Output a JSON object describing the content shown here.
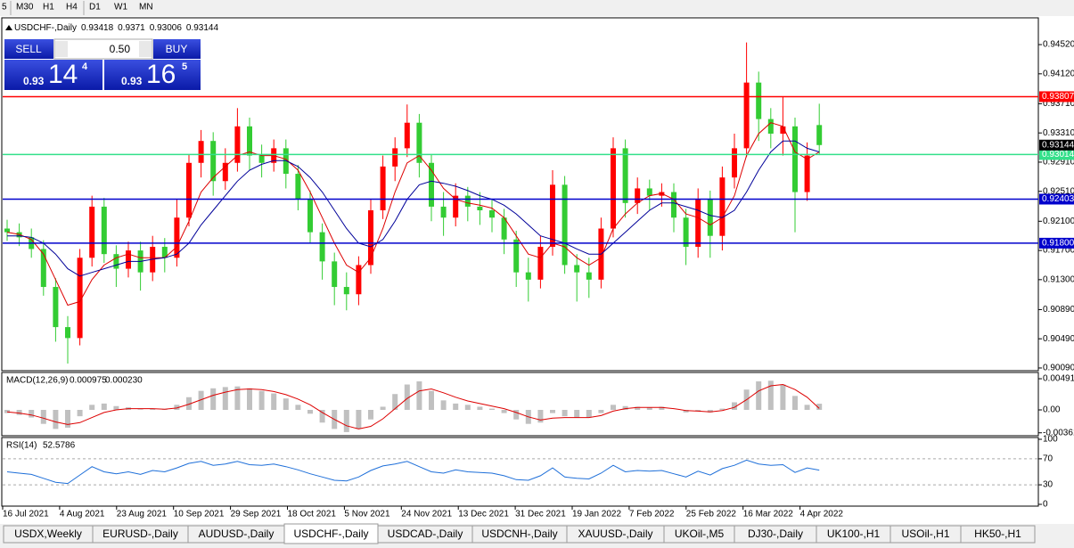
{
  "toolbar": [
    "5",
    "M30",
    "H1",
    "H4",
    "D1",
    "W1",
    "MN"
  ],
  "trade_panel": {
    "sell": "SELL",
    "buy": "BUY",
    "lot": "0.50",
    "sell_price": [
      "0.93",
      "14",
      "4"
    ],
    "buy_price": [
      "0.93",
      "16",
      "5"
    ]
  },
  "chart": {
    "symbol": "USDCHF-,Daily",
    "up_color": "#ff0000",
    "down_color": "#33cc33",
    "ylim": [
      0.90053,
      0.94887
    ],
    "yticks": [
      {
        "value": 0.9452,
        "label": "0.94520"
      },
      {
        "value": 0.9412,
        "label": "0.94120"
      },
      {
        "value": 0.9371,
        "label": "0.93710"
      },
      {
        "value": 0.9331,
        "label": "0.93310"
      },
      {
        "value": 0.9291,
        "label": "0.92910"
      },
      {
        "value": 0.9251,
        "label": "0.92510"
      },
      {
        "value": 0.921,
        "label": "0.92100"
      },
      {
        "value": 0.917,
        "label": "0.91700"
      },
      {
        "value": 0.913,
        "label": "0.91300"
      },
      {
        "value": 0.9089,
        "label": "0.90890"
      },
      {
        "value": 0.9049,
        "label": "0.90490"
      },
      {
        "value": 0.9009,
        "label": "0.90090"
      }
    ],
    "levels": [
      {
        "value": 0.93807,
        "label": "0.93807",
        "color": "#ff0000"
      },
      {
        "value": 0.93014,
        "label": "0.93014",
        "color": "#33e08a"
      },
      {
        "value": 0.92403,
        "label": "0.92403",
        "color": "#0000cc"
      },
      {
        "value": 0.918,
        "label": "0.91800",
        "color": "#0000cc"
      }
    ],
    "dates": [
      "16 Jul 2021",
      "4 Aug 2021",
      "23 Aug 2021",
      "10 Sep 2021",
      "29 Sep 2021",
      "18 Oct 2021",
      "5 Nov 2021",
      "24 Nov 2021",
      "13 Dec 2021",
      "31 Dec 2021",
      "19 Jan 2022",
      "7 Feb 2022",
      "25 Feb 2022",
      "16 Mar 2022",
      "4 Apr 2022"
    ],
    "candles": [
      [
        0.92,
        0.9212,
        0.9183,
        0.9195
      ],
      [
        0.9195,
        0.9207,
        0.9176,
        0.9188
      ],
      [
        0.9188,
        0.92,
        0.916,
        0.9172
      ],
      [
        0.9172,
        0.9184,
        0.9108,
        0.912
      ],
      [
        0.912,
        0.9132,
        0.9045,
        0.9065
      ],
      [
        0.9065,
        0.908,
        0.9015,
        0.905
      ],
      [
        0.905,
        0.9172,
        0.904,
        0.916
      ],
      [
        0.916,
        0.9245,
        0.9148,
        0.923
      ],
      [
        0.923,
        0.9242,
        0.9153,
        0.9165
      ],
      [
        0.9165,
        0.9177,
        0.912,
        0.9145
      ],
      [
        0.9145,
        0.9182,
        0.9133,
        0.917
      ],
      [
        0.917,
        0.9182,
        0.9115,
        0.914
      ],
      [
        0.914,
        0.919,
        0.9128,
        0.9175
      ],
      [
        0.9175,
        0.9187,
        0.914,
        0.916
      ],
      [
        0.916,
        0.924,
        0.9148,
        0.9215
      ],
      [
        0.9215,
        0.9302,
        0.9203,
        0.929
      ],
      [
        0.929,
        0.9335,
        0.927,
        0.932
      ],
      [
        0.932,
        0.9332,
        0.9245,
        0.9265
      ],
      [
        0.9265,
        0.931,
        0.9253,
        0.929
      ],
      [
        0.929,
        0.9365,
        0.9278,
        0.934
      ],
      [
        0.934,
        0.9352,
        0.928,
        0.93
      ],
      [
        0.93,
        0.9315,
        0.927,
        0.929
      ],
      [
        0.929,
        0.9322,
        0.9278,
        0.931
      ],
      [
        0.931,
        0.9322,
        0.9255,
        0.9275
      ],
      [
        0.9275,
        0.9287,
        0.9225,
        0.924
      ],
      [
        0.924,
        0.9252,
        0.918,
        0.9195
      ],
      [
        0.9195,
        0.9207,
        0.913,
        0.9155
      ],
      [
        0.9155,
        0.9167,
        0.9095,
        0.912
      ],
      [
        0.912,
        0.914,
        0.9088,
        0.911
      ],
      [
        0.911,
        0.9162,
        0.9095,
        0.915
      ],
      [
        0.915,
        0.924,
        0.9138,
        0.9225
      ],
      [
        0.9225,
        0.93,
        0.9213,
        0.9285
      ],
      [
        0.9285,
        0.9325,
        0.9265,
        0.931
      ],
      [
        0.931,
        0.937,
        0.9298,
        0.9345
      ],
      [
        0.9345,
        0.9357,
        0.927,
        0.929
      ],
      [
        0.929,
        0.9302,
        0.921,
        0.923
      ],
      [
        0.923,
        0.925,
        0.919,
        0.9215
      ],
      [
        0.9215,
        0.9262,
        0.9203,
        0.9245
      ],
      [
        0.9245,
        0.9257,
        0.921,
        0.923
      ],
      [
        0.923,
        0.925,
        0.9205,
        0.9225
      ],
      [
        0.9225,
        0.924,
        0.9195,
        0.9215
      ],
      [
        0.9215,
        0.9227,
        0.9165,
        0.9185
      ],
      [
        0.9185,
        0.9197,
        0.912,
        0.914
      ],
      [
        0.914,
        0.916,
        0.91,
        0.913
      ],
      [
        0.913,
        0.919,
        0.9118,
        0.9175
      ],
      [
        0.9175,
        0.928,
        0.9163,
        0.926
      ],
      [
        0.926,
        0.9272,
        0.9138,
        0.915
      ],
      [
        0.915,
        0.9165,
        0.91,
        0.914
      ],
      [
        0.914,
        0.916,
        0.9105,
        0.913
      ],
      [
        0.913,
        0.9215,
        0.9118,
        0.92
      ],
      [
        0.92,
        0.9325,
        0.9188,
        0.931
      ],
      [
        0.931,
        0.9322,
        0.9215,
        0.9235
      ],
      [
        0.9235,
        0.927,
        0.922,
        0.9255
      ],
      [
        0.9255,
        0.9267,
        0.9225,
        0.9245
      ],
      [
        0.9245,
        0.9262,
        0.923,
        0.925
      ],
      [
        0.925,
        0.9262,
        0.9195,
        0.9215
      ],
      [
        0.9215,
        0.9227,
        0.915,
        0.9175
      ],
      [
        0.9175,
        0.9255,
        0.916,
        0.924
      ],
      [
        0.924,
        0.9252,
        0.916,
        0.919
      ],
      [
        0.919,
        0.9285,
        0.917,
        0.927
      ],
      [
        0.927,
        0.933,
        0.9255,
        0.931
      ],
      [
        0.931,
        0.9455,
        0.9298,
        0.94
      ],
      [
        0.94,
        0.9415,
        0.932,
        0.935
      ],
      [
        0.935,
        0.9365,
        0.931,
        0.933
      ],
      [
        0.933,
        0.938,
        0.93,
        0.934
      ],
      [
        0.934,
        0.9352,
        0.9195,
        0.925
      ],
      [
        0.925,
        0.9318,
        0.9238,
        0.93
      ],
      [
        0.93418,
        0.9371,
        0.93006,
        0.93144
      ]
    ],
    "ma_fast": {
      "color": "#dd0000",
      "values": [
        0.9195,
        0.9192,
        0.9185,
        0.9165,
        0.913,
        0.9095,
        0.91,
        0.913,
        0.915,
        0.916,
        0.9165,
        0.916,
        0.916,
        0.916,
        0.9175,
        0.921,
        0.925,
        0.927,
        0.9285,
        0.93,
        0.9305,
        0.93,
        0.93,
        0.9295,
        0.928,
        0.925,
        0.9215,
        0.918,
        0.915,
        0.914,
        0.916,
        0.92,
        0.925,
        0.929,
        0.93,
        0.928,
        0.9255,
        0.924,
        0.9235,
        0.9232,
        0.9228,
        0.9215,
        0.919,
        0.9165,
        0.916,
        0.918,
        0.9175,
        0.916,
        0.915,
        0.916,
        0.92,
        0.922,
        0.9235,
        0.9245,
        0.9248,
        0.924,
        0.922,
        0.9215,
        0.9205,
        0.9215,
        0.9245,
        0.93,
        0.933,
        0.9345,
        0.934,
        0.9305,
        0.9295,
        0.9305
      ]
    },
    "ma_slow": {
      "color": "#000099",
      "values": [
        0.919,
        0.919,
        0.9188,
        0.918,
        0.9165,
        0.9145,
        0.9135,
        0.914,
        0.9145,
        0.915,
        0.9155,
        0.9155,
        0.9158,
        0.916,
        0.9165,
        0.918,
        0.9205,
        0.9225,
        0.9245,
        0.9265,
        0.928,
        0.9288,
        0.9293,
        0.9293,
        0.9285,
        0.927,
        0.925,
        0.9225,
        0.92,
        0.918,
        0.9175,
        0.9185,
        0.921,
        0.924,
        0.926,
        0.9265,
        0.9262,
        0.9258,
        0.9252,
        0.9245,
        0.924,
        0.9232,
        0.922,
        0.9205,
        0.919,
        0.9185,
        0.918,
        0.9172,
        0.9165,
        0.9165,
        0.918,
        0.9195,
        0.921,
        0.9225,
        0.9235,
        0.9235,
        0.923,
        0.9225,
        0.9218,
        0.9215,
        0.9225,
        0.925,
        0.928,
        0.9305,
        0.932,
        0.932,
        0.931,
        0.9305
      ]
    }
  },
  "macd": {
    "label": "MACD(12,26,9)",
    "current": [
      "0.000975",
      "0.000230"
    ],
    "ylim": [
      -0.00407,
      0.0059
    ],
    "yticks": [
      0.004913,
      {
        "value": 0,
        "label": "0.00"
      },
      -0.00361
    ],
    "hist_color": "#c0c0c0",
    "signal_color": "#dd0000",
    "histogram": [
      -0.0005,
      -0.0008,
      -0.0012,
      -0.0022,
      -0.003,
      -0.0028,
      -0.001,
      0.0008,
      0.001,
      0.0006,
      0.0004,
      0.0001,
      0.0002,
      0.0001,
      0.0008,
      0.002,
      0.003,
      0.0034,
      0.0036,
      0.0037,
      0.0034,
      0.003,
      0.0026,
      0.0018,
      0.0008,
      -0.0006,
      -0.002,
      -0.003,
      -0.0035,
      -0.003,
      -0.0015,
      0.0005,
      0.0025,
      0.004,
      0.0045,
      0.003,
      0.0015,
      0.001,
      0.0008,
      0.0005,
      0.0002,
      -0.0005,
      -0.0015,
      -0.0022,
      -0.002,
      -0.0005,
      -0.001,
      -0.0012,
      -0.0012,
      -0.0005,
      0.0008,
      0.0006,
      0.0005,
      0.0004,
      0.0005,
      0.0,
      -0.0004,
      -0.0002,
      -0.0004,
      0.0002,
      0.0012,
      0.0032,
      0.0045,
      0.0046,
      0.004,
      0.0022,
      0.0008,
      0.000975
    ],
    "signal": [
      -0.0003,
      -0.0005,
      -0.0008,
      -0.0013,
      -0.0019,
      -0.0023,
      -0.002,
      -0.0012,
      -0.0004,
      0.0,
      0.0002,
      0.0002,
      0.0002,
      0.0001,
      0.0003,
      0.0009,
      0.0016,
      0.0023,
      0.0028,
      0.0032,
      0.0033,
      0.0032,
      0.0029,
      0.0024,
      0.0017,
      0.0008,
      -0.0004,
      -0.0015,
      -0.0025,
      -0.003,
      -0.0026,
      -0.0014,
      0.0002,
      0.0018,
      0.003,
      0.0033,
      0.0027,
      0.002,
      0.0014,
      0.001,
      0.0006,
      0.0002,
      -0.0004,
      -0.0011,
      -0.0016,
      -0.0013,
      -0.0012,
      -0.0012,
      -0.0012,
      -0.0009,
      -0.0002,
      0.0002,
      0.0004,
      0.0004,
      0.0004,
      0.0002,
      -0.0001,
      -0.0002,
      -0.0003,
      -0.0001,
      0.0004,
      0.0016,
      0.003,
      0.0038,
      0.004,
      0.0032,
      0.002,
      0.00023
    ]
  },
  "rsi": {
    "label": "RSI(14)",
    "ylim": [
      0,
      100
    ],
    "yticks": [
      100,
      70,
      30,
      0
    ],
    "levels": [
      70,
      30
    ],
    "color": "#1e6fd9",
    "values": [
      50,
      48,
      46,
      40,
      34,
      32,
      45,
      58,
      50,
      47,
      50,
      46,
      52,
      50,
      56,
      63,
      66,
      60,
      62,
      66,
      61,
      60,
      62,
      58,
      53,
      47,
      42,
      37,
      36,
      42,
      52,
      59,
      62,
      66,
      58,
      50,
      48,
      53,
      50,
      49,
      48,
      44,
      38,
      37,
      44,
      56,
      42,
      40,
      39,
      48,
      60,
      50,
      52,
      51,
      52,
      47,
      42,
      51,
      45,
      55,
      60,
      68,
      62,
      60,
      61,
      49,
      56,
      52.5786
    ]
  },
  "tabs": [
    "USDX,Weekly",
    "EURUSD-,Daily",
    "AUDUSD-,Daily",
    "USDCHF-,Daily",
    "USDCAD-,Daily",
    "USDCNH-,Daily",
    "XAUUSD-,Daily",
    "UKOil-,M5",
    "DJ30-,Daily",
    "UK100-,H1",
    "USOil-,H1",
    "HK50-,H1"
  ],
  "active_tab": "USDCHF-,Daily"
}
